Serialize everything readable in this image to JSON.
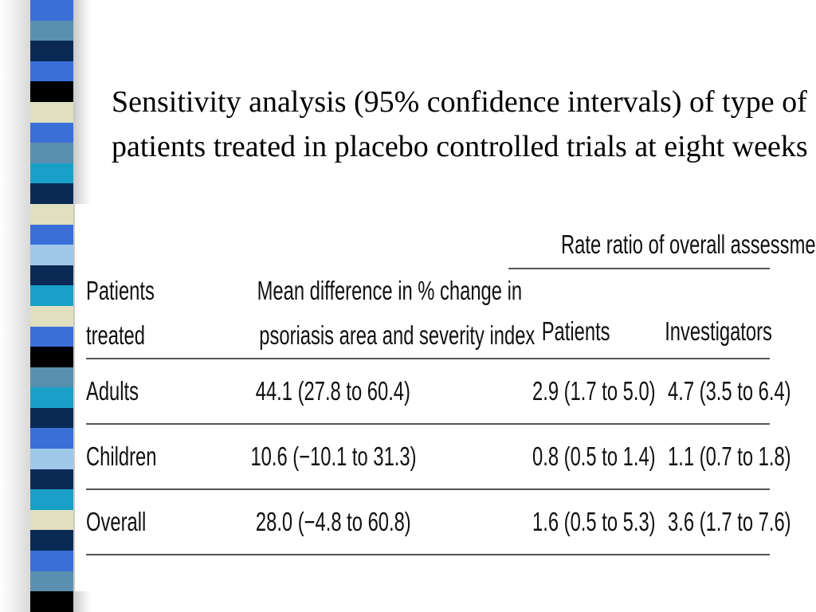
{
  "title": "Sensitivity analysis (95% confidence intervals) of type of patients treated in placebo controlled trials at eight weeks",
  "stripe_colors": [
    "#3a6fd8",
    "#5b8fb0",
    "#0a2a55",
    "#3a6fd8",
    "#000000",
    "#e0e0c0",
    "#3a6fd8",
    "#5b8fb0",
    "#1aa0c8",
    "#0a2a55",
    "#e0e0c0",
    "#3a6fd8",
    "#a0c8e8",
    "#0a2a55",
    "#1aa0c8",
    "#e0e0c0",
    "#3a6fd8",
    "#000000",
    "#5b8fb0",
    "#1aa0c8",
    "#0a2a55",
    "#3a6fd8",
    "#a0c8e8",
    "#0a2a55",
    "#1aa0c8",
    "#e0e0c0",
    "#0a2a55",
    "#3a6fd8",
    "#5b8fb0",
    "#000000"
  ],
  "table": {
    "group_header": "Rate ratio of overall assessment",
    "col_patients_treated_line1": "Patients",
    "col_patients_treated_line2": "treated",
    "col_mean_diff_line1": "Mean difference in % change in",
    "col_mean_diff_line2": "psoriasis area and severity index",
    "col_patients": "Patients",
    "col_investigators": "Investigators",
    "rows": [
      {
        "label": "Adults",
        "mean_diff": "44.1 (27.8 to 60.4)",
        "patients": "2.9 (1.7 to 5.0)",
        "investigators": "4.7 (3.5 to 6.4)"
      },
      {
        "label": "Children",
        "mean_diff": "10.6 (−10.1 to 31.3)",
        "patients": "0.8 (0.5 to 1.4)",
        "investigators": "1.1 (0.7 to 1.8)"
      },
      {
        "label": "Overall",
        "mean_diff": "28.0 (−4.8 to 60.8)",
        "patients": "1.6 (0.5 to 5.3)",
        "investigators": "3.6 (1.7 to 7.6)"
      }
    ]
  }
}
